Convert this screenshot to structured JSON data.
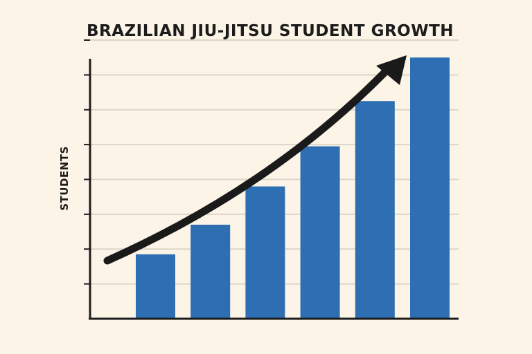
{
  "chart_data": {
    "type": "bar",
    "title": "BRAZILIAN JIU-JITSU STUDENT GROWTH",
    "xlabel": "",
    "ylabel": "STUDENTS",
    "categories": [
      "",
      "",
      "",
      "",
      "",
      ""
    ],
    "values": [
      1.85,
      2.7,
      3.8,
      4.95,
      6.25,
      7.5
    ],
    "ylim": [
      0,
      8
    ],
    "y_ticks": [
      1,
      2,
      3,
      4,
      5,
      6,
      7,
      8
    ],
    "grid": true,
    "legend": "none",
    "bar_color": "#2e6fb3",
    "trend_arrow": true,
    "trend_color": "#1a1a1a",
    "axis_color": "#1c1c1c",
    "grid_color": "#ddd6c8"
  }
}
